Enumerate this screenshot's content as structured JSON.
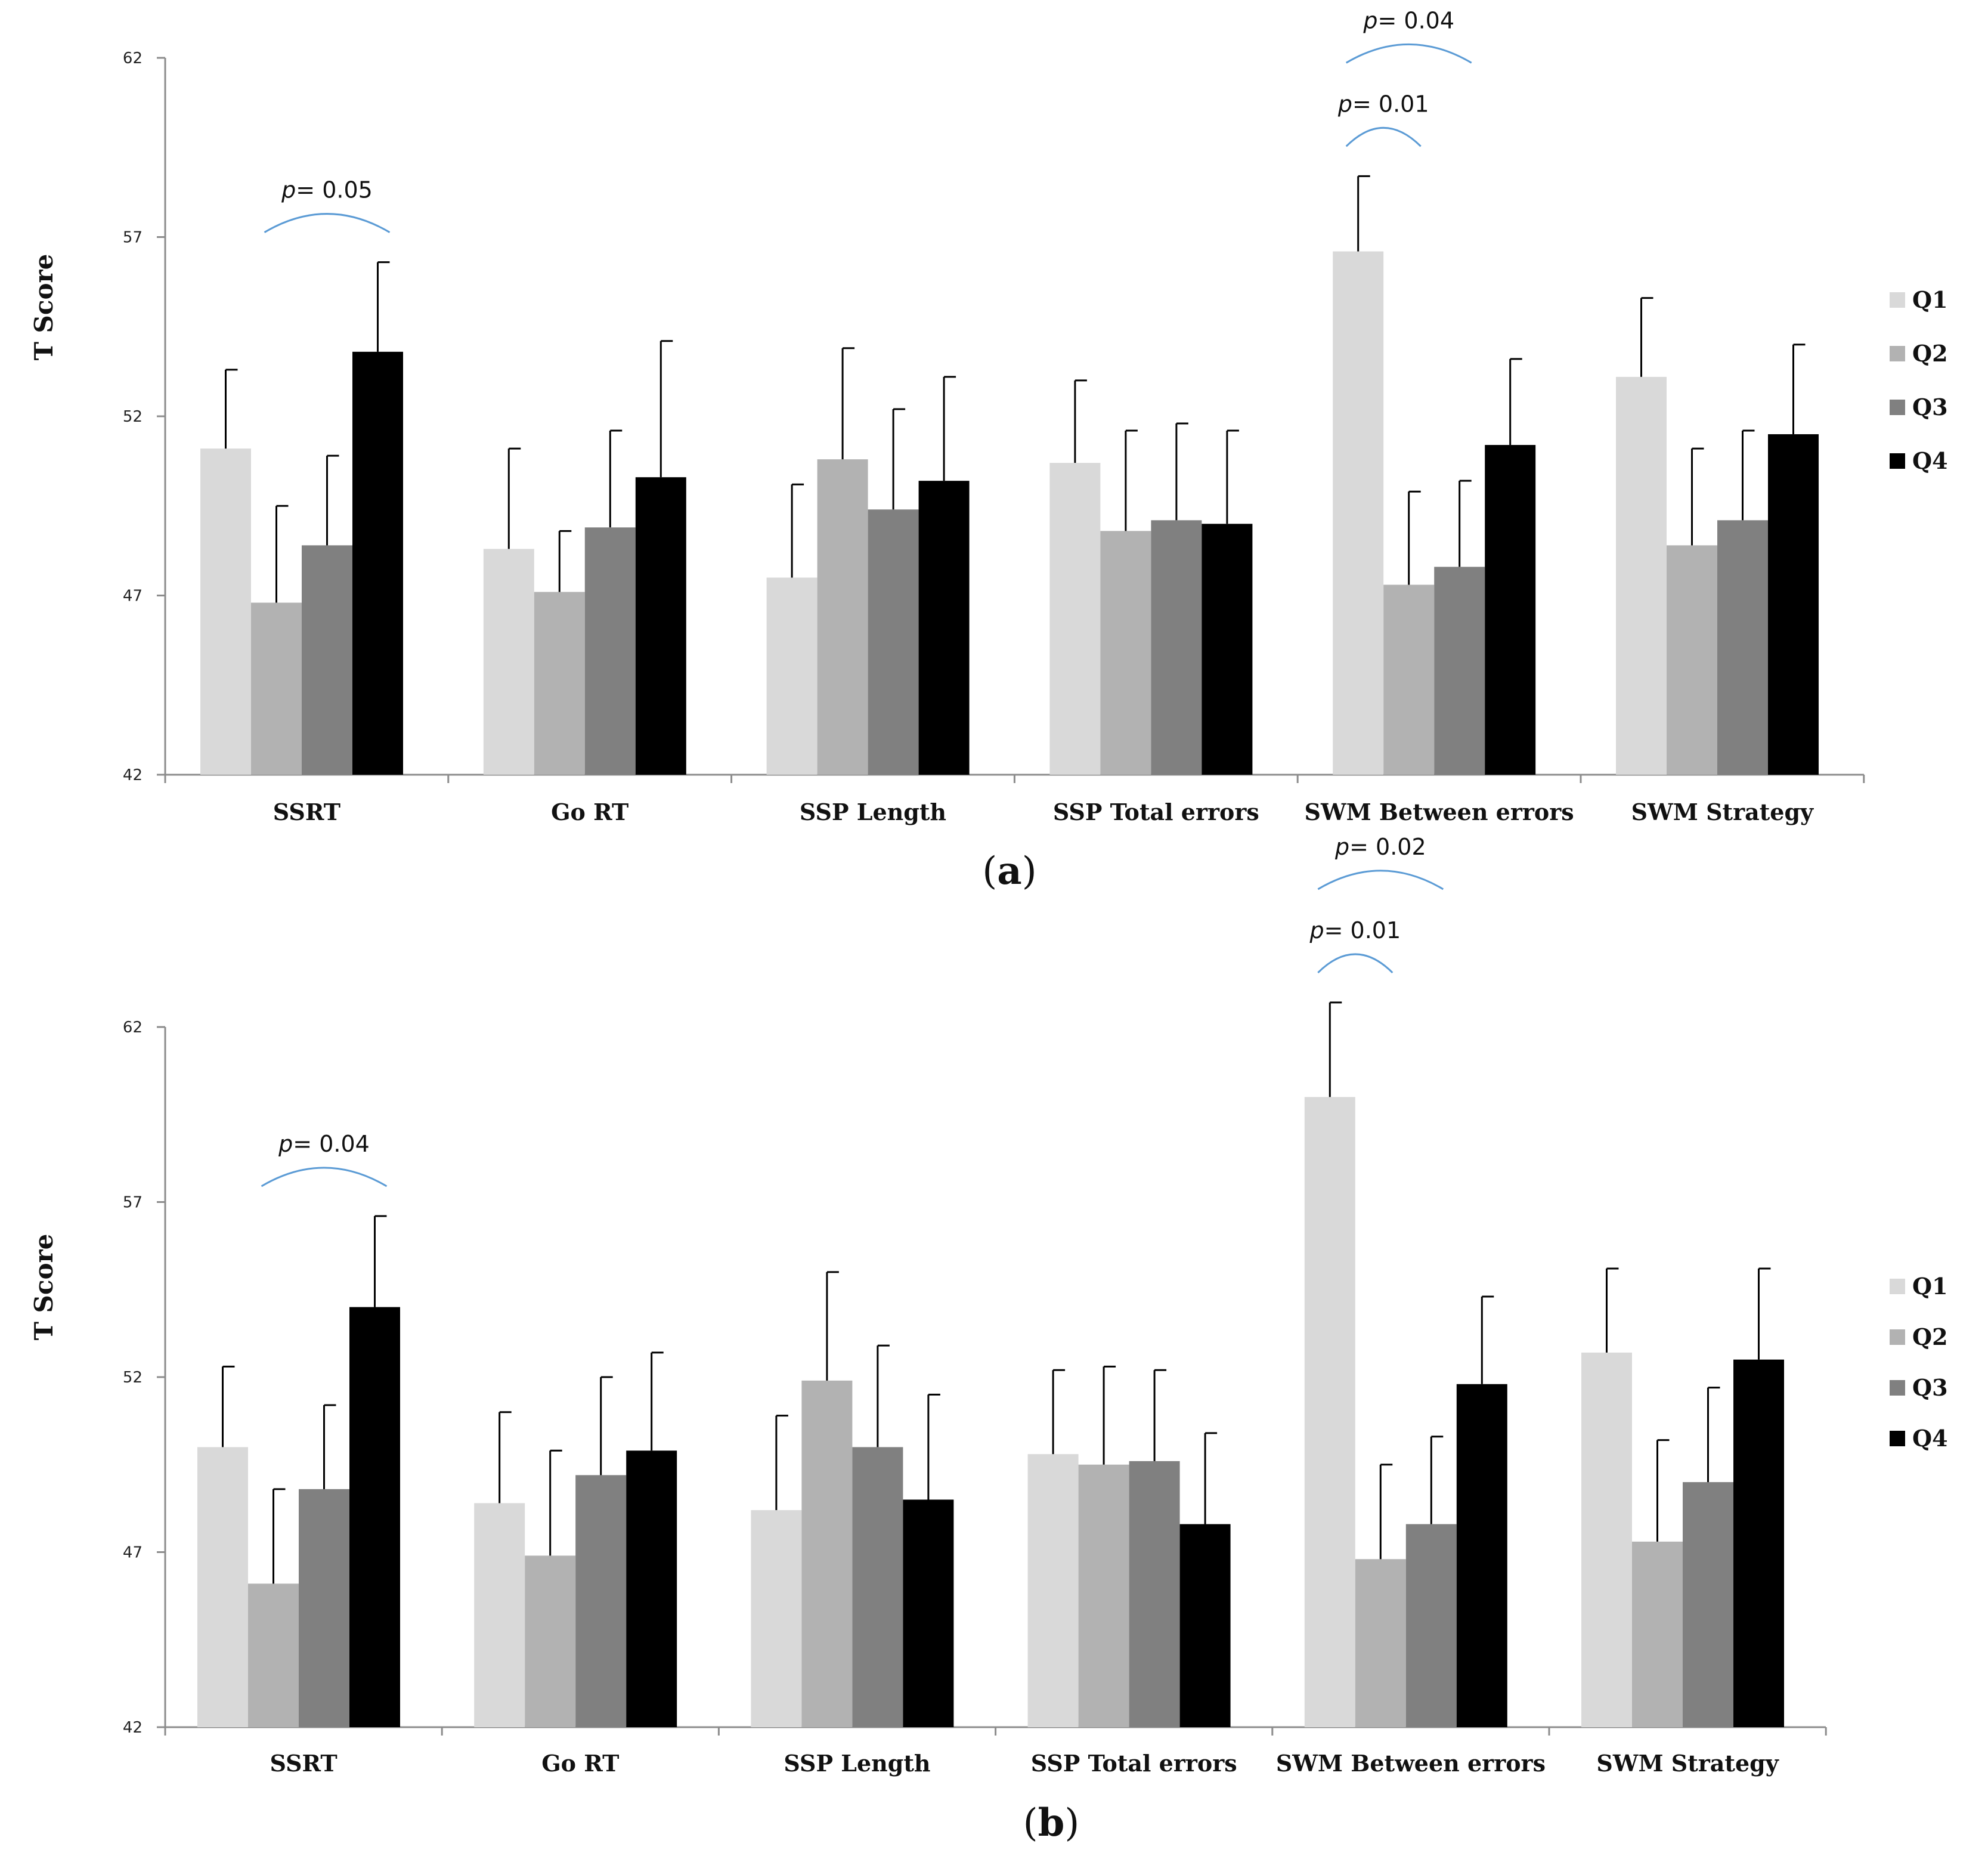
{
  "chart_data": [
    {
      "type": "bar",
      "panel_label": "a",
      "ylabel": "T Score",
      "xlabel": "",
      "ylim": [
        42,
        62
      ],
      "yticks": [
        "42",
        "47",
        "52",
        "57",
        "62"
      ],
      "grid": false,
      "legend_position": "right",
      "categories": [
        "SSRT",
        "Go RT",
        "SSP Length",
        "SSP Total errors",
        "SWM Between errors",
        "SWM Strategy"
      ],
      "series": [
        {
          "name": "Q1",
          "color": "#d9d9d9",
          "values": [
            51.1,
            48.3,
            47.5,
            50.7,
            56.6,
            53.1
          ],
          "err": [
            2.2,
            2.8,
            2.6,
            2.3,
            2.1,
            2.2
          ]
        },
        {
          "name": "Q2",
          "color": "#b2b2b2",
          "values": [
            46.8,
            47.1,
            50.8,
            48.8,
            47.3,
            48.4
          ],
          "err": [
            2.7,
            1.7,
            3.1,
            2.8,
            2.6,
            2.7
          ]
        },
        {
          "name": "Q3",
          "color": "#808080",
          "values": [
            48.4,
            48.9,
            49.4,
            49.1,
            47.8,
            49.1
          ],
          "err": [
            2.5,
            2.7,
            2.8,
            2.7,
            2.4,
            2.5
          ]
        },
        {
          "name": "Q4",
          "color": "#000000",
          "values": [
            53.8,
            50.3,
            50.2,
            49.0,
            51.2,
            51.5
          ],
          "err": [
            2.5,
            3.8,
            2.9,
            2.6,
            2.4,
            2.5
          ]
        }
      ],
      "annotations": [
        {
          "category": "SSRT",
          "from": "Q2",
          "to": "Q4",
          "p_prefix": "p",
          "text": "= 0.05"
        },
        {
          "category": "SWM Between errors",
          "from": "Q1",
          "to": "Q3",
          "p_prefix": "p",
          "text": "= 0.04"
        },
        {
          "category": "SWM Between errors",
          "from": "Q1",
          "to": "Q2",
          "p_prefix": "p",
          "text": "= 0.01"
        }
      ]
    },
    {
      "type": "bar",
      "panel_label": "b",
      "ylabel": "T Score",
      "xlabel": "",
      "ylim": [
        42,
        62
      ],
      "yticks": [
        "42",
        "47",
        "52",
        "57",
        "62"
      ],
      "grid": false,
      "legend_position": "right",
      "categories": [
        "SSRT",
        "Go RT",
        "SSP Length",
        "SSP Total errors",
        "SWM Between errors",
        "SWM Strategy"
      ],
      "series": [
        {
          "name": "Q1",
          "color": "#d9d9d9",
          "values": [
            50.0,
            48.4,
            48.2,
            49.8,
            60.0,
            52.7
          ],
          "err": [
            2.3,
            2.6,
            2.7,
            2.4,
            2.7,
            2.4
          ]
        },
        {
          "name": "Q2",
          "color": "#b2b2b2",
          "values": [
            46.1,
            46.9,
            51.9,
            49.5,
            46.8,
            47.3
          ],
          "err": [
            2.7,
            3.0,
            3.1,
            2.8,
            2.7,
            2.9
          ]
        },
        {
          "name": "Q3",
          "color": "#808080",
          "values": [
            48.8,
            49.2,
            50.0,
            49.6,
            47.8,
            49.0
          ],
          "err": [
            2.4,
            2.8,
            2.9,
            2.6,
            2.5,
            2.7
          ]
        },
        {
          "name": "Q4",
          "color": "#000000",
          "values": [
            54.0,
            49.9,
            48.5,
            47.8,
            51.8,
            52.5
          ],
          "err": [
            2.6,
            2.8,
            3.0,
            2.6,
            2.5,
            2.6
          ]
        }
      ],
      "annotations": [
        {
          "category": "SSRT",
          "from": "Q2",
          "to": "Q4",
          "p_prefix": "p",
          "text": "= 0.04"
        },
        {
          "category": "SWM Between errors",
          "from": "Q1",
          "to": "Q3",
          "p_prefix": "p",
          "text": "= 0.02"
        },
        {
          "category": "SWM Between errors",
          "from": "Q1",
          "to": "Q2",
          "p_prefix": "p",
          "text": "= 0.01"
        }
      ]
    }
  ]
}
